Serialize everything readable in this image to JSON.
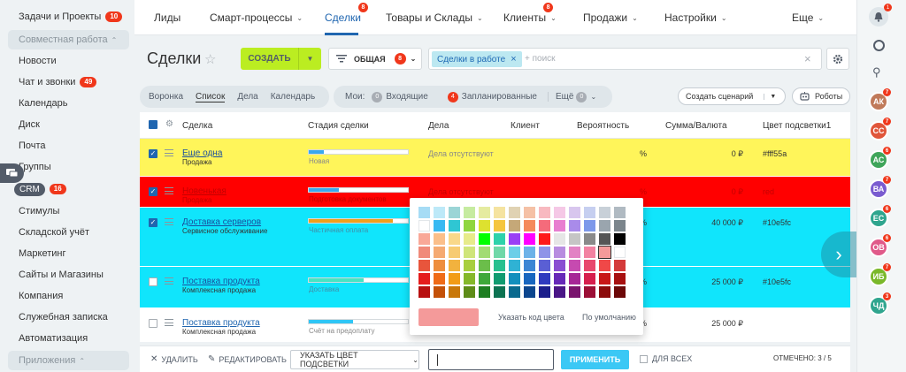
{
  "sidebar": {
    "tasks": {
      "label": "Задачи и Проекты",
      "badge": "10"
    },
    "collab_group": "Совместная работа",
    "items": [
      {
        "label": "Новости"
      },
      {
        "label": "Чат и звонки",
        "badge": "49"
      },
      {
        "label": "Календарь"
      },
      {
        "label": "Диск"
      },
      {
        "label": "Почта"
      },
      {
        "label": "Группы"
      },
      {
        "label": "CRM",
        "badge": "16"
      },
      {
        "label": "Стимулы"
      },
      {
        "label": "Складской учёт"
      },
      {
        "label": "Маркетинг"
      },
      {
        "label": "Сайты и Магазины"
      },
      {
        "label": "Компания"
      },
      {
        "label": "Служебная записка"
      },
      {
        "label": "Автоматизация"
      }
    ],
    "apps_group": "Приложения"
  },
  "topnav": {
    "items": [
      {
        "label": "Лиды"
      },
      {
        "label": "Смарт-процессы",
        "dropdown": true
      },
      {
        "label": "Сделки",
        "badge": "8",
        "active": true
      },
      {
        "label": "Товары и Склады",
        "dropdown": true
      },
      {
        "label": "Клиенты",
        "badge": "8",
        "dropdown": true
      },
      {
        "label": "Продажи",
        "dropdown": true
      },
      {
        "label": "Настройки",
        "dropdown": true
      },
      {
        "label": "Еще",
        "dropdown": true
      }
    ]
  },
  "header": {
    "title": "Сделки",
    "create_label": "СОЗДАТЬ",
    "filter_label": "ОБЩАЯ",
    "filter_badge": "8",
    "search_tag": "Сделки в работе",
    "search_placeholder": "+ поиск"
  },
  "views": {
    "tabs": [
      "Воронка",
      "Список",
      "Дела",
      "Календарь"
    ],
    "active": "Список",
    "counters_label": "Мои:",
    "incoming_count": "0",
    "incoming_label": "Входящие",
    "planned_count": "4",
    "planned_label": "Запланированные",
    "more_label": "Ещё",
    "more_count": "0",
    "scenario_label": "Создать сценарий",
    "robots_label": "Роботы"
  },
  "grid": {
    "columns": [
      "Сделка",
      "Стадия сделки",
      "Дела",
      "Клиент",
      "Вероятность",
      "Сумма/Валюта",
      "Цвет подсветки1"
    ],
    "rows": [
      {
        "title": "Еще одна",
        "sub": "Продажа",
        "stage": "Новая",
        "stage_fill": 0.15,
        "stage_color": "#39a8ef",
        "dela": "Дела отсутствуют",
        "pct": "%",
        "sum": "0 ₽",
        "hl": "#fff55a",
        "bg": "#fff55a",
        "checked": true
      },
      {
        "title": "Новенькая",
        "sub": "Продажа",
        "stage": "Подготовка документов",
        "stage_fill": 0.3,
        "stage_color": "#39a8ef",
        "dela": "Дела отсутствуют",
        "pct": "%",
        "sum": "0 ₽",
        "hl": "red",
        "bg": "#ff0000",
        "checked": true
      },
      {
        "title": "Доставка серверов",
        "sub": "Сервисное обслуживание",
        "stage": "Частичная оплата",
        "stage_fill": 0.85,
        "stage_color": "#f0a01c",
        "dela": "",
        "pct": "%",
        "sum": "40 000 ₽",
        "hl": "#10e5fc",
        "bg": "#10e5fc",
        "checked": true
      },
      {
        "title": "Поставка продукта",
        "sub": "Комплексная продажа",
        "stage": "Доставка",
        "stage_fill": 0.55,
        "stage_color": "#47e4c2",
        "dela": "",
        "pct": "%",
        "sum": "25 000 ₽",
        "hl": "#10e5fc",
        "bg": "#10e5fc",
        "checked": false
      },
      {
        "title": "Поставка продукта",
        "sub": "Комплексная продажа",
        "stage": "Счёт на предоплату",
        "stage_fill": 0.45,
        "stage_color": "#2fc6f6",
        "dela": "",
        "pct": "%",
        "sum": "25 000 ₽",
        "hl": "",
        "bg": "#ffffff",
        "checked": false
      }
    ]
  },
  "picker": {
    "custom_label": "Указать код цвета",
    "default_label": "По умолчанию",
    "preview_color": "#f49a9a",
    "rows": [
      [
        "#a6dcf5",
        "#bde9f8",
        "#9bd5d6",
        "#c6eba0",
        "#e5eba0",
        "#f5e3a0",
        "#e0d2b3",
        "#f5c1a6",
        "#f8b9c0",
        "#f5c8e6",
        "#d8c6ee",
        "#c6cff0",
        "#c8d0d8",
        "#b0bac2"
      ],
      [
        "#ffffff",
        "#38b9f2",
        "#2fc6d3",
        "#8fd63f",
        "#dde12f",
        "#f5c63f",
        "#c5a878",
        "#f58a5c",
        "#f56b7b",
        "#e87ed0",
        "#a98bea",
        "#7d98ea",
        "#9aa5ae",
        "#7b858c"
      ],
      [
        "#f9a898",
        "#fbbf8a",
        "#f9d88a",
        "#e7eb8a",
        "#00ff00",
        "#2ed2ab",
        "#9a3ff5",
        "#ff00ff",
        "#ff1a1a",
        "#e6e6e6",
        "#c5c5c5",
        "#8a8a8a",
        "#555555",
        "#000000"
      ],
      [
        "#f08a7a",
        "#f5aa72",
        "#f7cb72",
        "#cfe57a",
        "#a2dc73",
        "#6fd8a8",
        "#6ccfe8",
        "#6cb2e8",
        "#8f94e8",
        "#b88ce0",
        "#e282c4",
        "#f282a2",
        "#f49a9a",
        "#ffffff"
      ],
      [
        "#e8553c",
        "#ee8e3e",
        "#f2b23e",
        "#a8cf3e",
        "#6bbe4a",
        "#28c08f",
        "#2fb2d4",
        "#3c86d4",
        "#5a5fd4",
        "#8a4ed2",
        "#c64ab0",
        "#e8486e",
        "#f04848",
        "#d43a3a"
      ],
      [
        "#e51c1c",
        "#ef6b17",
        "#f29c17",
        "#85b82a",
        "#3ea83a",
        "#109b70",
        "#128fbd",
        "#1866bf",
        "#2f3bbf",
        "#6628b8",
        "#a62696",
        "#d61f4e",
        "#c81818",
        "#a81010"
      ],
      [
        "#b81010",
        "#c45108",
        "#c8780a",
        "#5e8c18",
        "#1e7e22",
        "#0c7352",
        "#0a6a8e",
        "#0c468e",
        "#1c1f8c",
        "#4a1687",
        "#7a146e",
        "#9c0f36",
        "#8c0c0c",
        "#6c0808"
      ]
    ]
  },
  "bottombar": {
    "delete_label": "УДАЛИТЬ",
    "edit_label": "РЕДАКТИРОВАТЬ",
    "hl_select_label": "УКАЗАТЬ ЦВЕТ ПОДСВЕТКИ",
    "apply_label": "ПРИМЕНИТЬ",
    "for_all_label": "ДЛЯ ВСЕХ",
    "selected_label": "ОТМЕЧЕНО: 3 / 5"
  },
  "rightbar": {
    "bell_badge": "1",
    "avatars": [
      {
        "initials": "АК",
        "color": "#c07a5a",
        "badge": "7"
      },
      {
        "initials": "СС",
        "color": "#e0553a",
        "badge": "7"
      },
      {
        "initials": "АС",
        "color": "#3fa55a",
        "badge": "6"
      },
      {
        "initials": "ВА",
        "color": "#7a5cd0",
        "badge": "7"
      },
      {
        "initials": "ЕС",
        "color": "#2fa58e",
        "badge": "6"
      },
      {
        "initials": "ОВ",
        "color": "#e05a8a",
        "badge": "6"
      },
      {
        "initials": "ИБ",
        "color": "#7ab82a",
        "badge": "7"
      },
      {
        "initials": "ЧД",
        "color": "#2fa58e",
        "badge": "3"
      }
    ]
  }
}
